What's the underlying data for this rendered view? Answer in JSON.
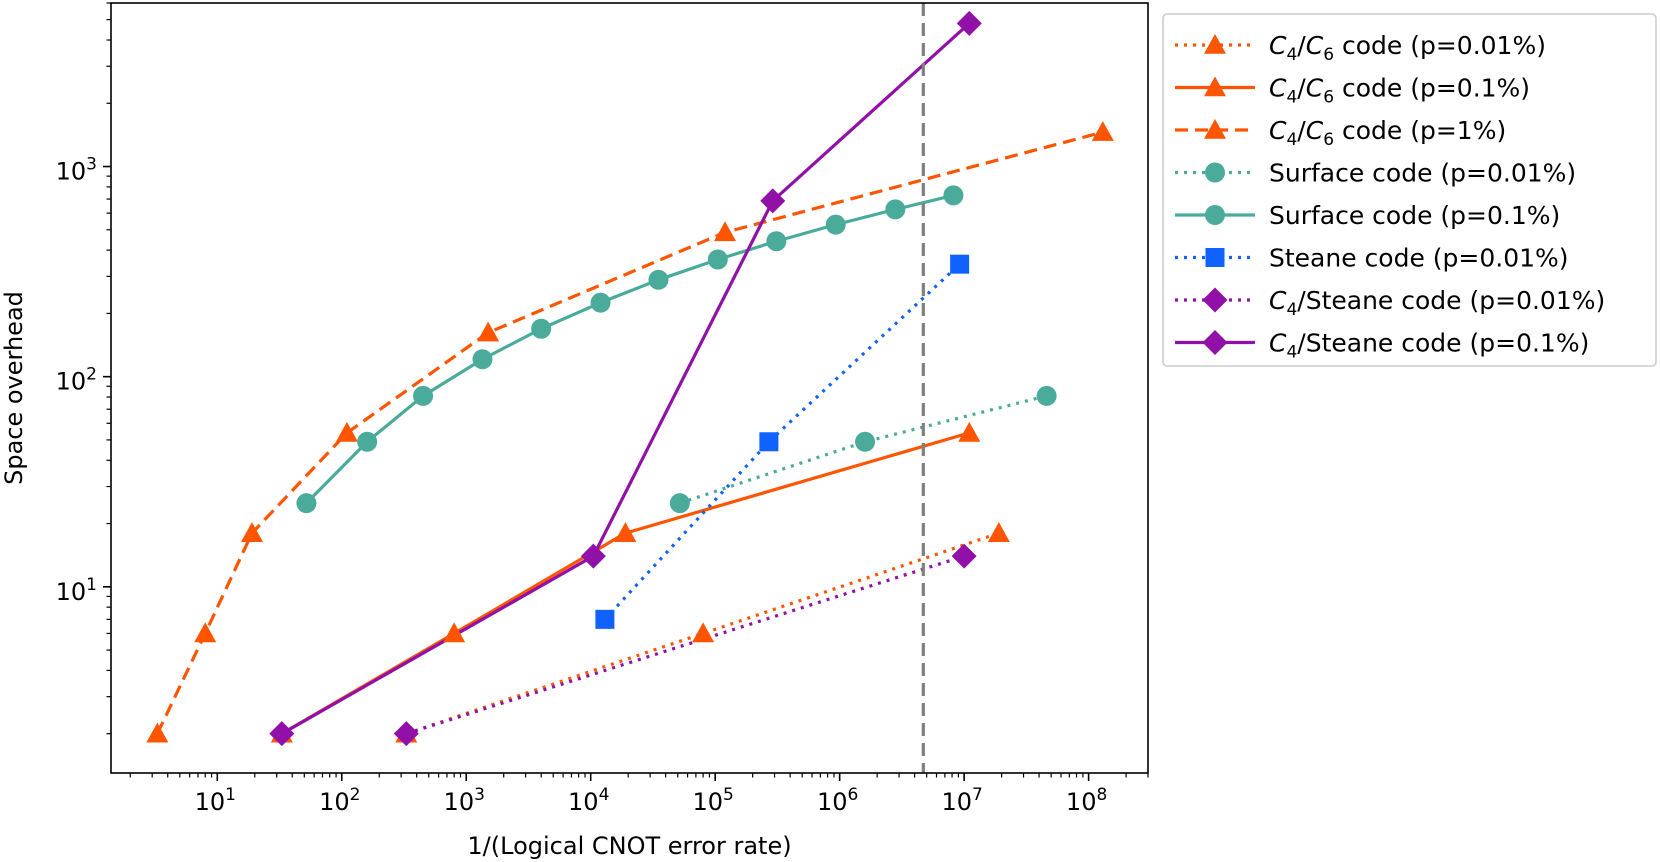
{
  "chart_data": {
    "type": "line",
    "xlabel": "1/(Logical CNOT error rate)",
    "ylabel": "Space overhead",
    "xscale": "log",
    "yscale": "log",
    "xlim": [
      1.4,
      300000000
    ],
    "ylim": [
      1.3,
      6000
    ],
    "xticks": [
      10,
      100,
      1000,
      10000,
      100000,
      1000000,
      10000000,
      100000000
    ],
    "yticks": [
      10,
      100,
      1000
    ],
    "grid": false,
    "legend_position": "outside-top-right",
    "reference_line": {
      "orientation": "vertical",
      "x": 4700000,
      "style": "dashed",
      "color": "#808080"
    },
    "series": [
      {
        "name": "C4/C6 code (p=0.01%)",
        "legend_parts": [
          [
            "C",
            true
          ],
          [
            "4",
            false,
            true
          ],
          [
            "/",
            false
          ],
          [
            "C",
            true
          ],
          [
            "6",
            false,
            true
          ],
          [
            " code (p=0.01%)",
            false
          ]
        ],
        "color": "#ff5500",
        "linestyle": "dotted",
        "marker": "triangle",
        "x": [
          330,
          80000,
          19000000
        ],
        "y": [
          2,
          6,
          18
        ]
      },
      {
        "name": "C4/C6 code (p=0.1%)",
        "legend_parts": [
          [
            "C",
            true
          ],
          [
            "4",
            false,
            true
          ],
          [
            "/",
            false
          ],
          [
            "C",
            true
          ],
          [
            "6",
            false,
            true
          ],
          [
            " code (p=0.1%)",
            false
          ]
        ],
        "color": "#ff5500",
        "linestyle": "solid",
        "marker": "triangle",
        "x": [
          33,
          800,
          19000,
          11000000
        ],
        "y": [
          2,
          6,
          18,
          54
        ]
      },
      {
        "name": "C4/C6 code (p=1%)",
        "legend_parts": [
          [
            "C",
            true
          ],
          [
            "4",
            false,
            true
          ],
          [
            "/",
            false
          ],
          [
            "C",
            true
          ],
          [
            "6",
            false,
            true
          ],
          [
            " code (p=1%)",
            false
          ]
        ],
        "color": "#ff5500",
        "linestyle": "dashed",
        "marker": "triangle",
        "x": [
          3.3,
          8,
          19,
          110,
          1500,
          120000,
          130000000
        ],
        "y": [
          2,
          6,
          18,
          54,
          162,
          486,
          1458
        ]
      },
      {
        "name": "Surface code (p=0.01%)",
        "legend_parts": [
          [
            "Surface code (p=0.01%)",
            false
          ]
        ],
        "color": "#4aab9b",
        "linestyle": "dotted",
        "marker": "circle",
        "x": [
          52000,
          1600000,
          46000000
        ],
        "y": [
          25,
          49,
          81
        ]
      },
      {
        "name": "Surface code (p=0.1%)",
        "legend_parts": [
          [
            "Surface code (p=0.1%)",
            false
          ]
        ],
        "color": "#4aab9b",
        "linestyle": "solid",
        "marker": "circle",
        "x": [
          52,
          160,
          450,
          1350,
          4000,
          12000,
          35000,
          105000,
          310000,
          930000,
          2800000,
          8200000
        ],
        "y": [
          25,
          49,
          81,
          121,
          169,
          225,
          289,
          361,
          441,
          529,
          625,
          729
        ]
      },
      {
        "name": "Steane code (p=0.01%)",
        "legend_parts": [
          [
            "Steane code (p=0.01%)",
            false
          ]
        ],
        "color": "#0f62fe",
        "linestyle": "dotted",
        "marker": "square",
        "x": [
          13000,
          270000,
          9200000
        ],
        "y": [
          7,
          49,
          343
        ]
      },
      {
        "name": "C4/Steane code (p=0.01%)",
        "legend_parts": [
          [
            "C",
            true
          ],
          [
            "4",
            false,
            true
          ],
          [
            "/Steane code (p=0.01%)",
            false
          ]
        ],
        "color": "#9010a8",
        "linestyle": "dotted",
        "marker": "diamond",
        "x": [
          330,
          10000000
        ],
        "y": [
          2,
          14
        ]
      },
      {
        "name": "C4/Steane code (p=0.1%)",
        "legend_parts": [
          [
            "C",
            true
          ],
          [
            "4",
            false,
            true
          ],
          [
            "/Steane code (p=0.1%)",
            false
          ]
        ],
        "color": "#9010a8",
        "linestyle": "solid",
        "marker": "diamond",
        "x": [
          33,
          10500,
          290000,
          11000000
        ],
        "y": [
          2,
          14,
          686,
          4802
        ]
      }
    ]
  }
}
